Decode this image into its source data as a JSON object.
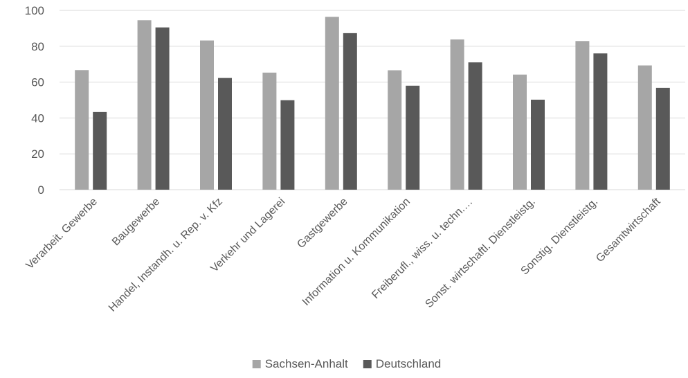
{
  "chart_data": {
    "type": "bar",
    "title": "",
    "xlabel": "",
    "ylabel": "",
    "ylim": [
      0,
      100
    ],
    "yticks": [
      0,
      20,
      40,
      60,
      80,
      100
    ],
    "grid": true,
    "legend_position": "bottom",
    "categories": [
      "Verarbeit. Gewerbe",
      "Baugewerbe",
      "Handel, Instandh. u. Rep. v. Kfz",
      "Verkehr und Lagerei",
      "Gastgewerbe",
      "Information u. Kommunikation",
      "Freiberufl., wiss. u. techn.…",
      "Sonst. wirtschaftl. Dienstleistg.",
      "Sonstig. Dienstleistg.",
      "Gesamtwirtschaft"
    ],
    "series": [
      {
        "name": "Sachsen-Anhalt",
        "color": "#a6a6a6",
        "values": [
          66.7,
          94.5,
          83.2,
          65.3,
          96.4,
          66.6,
          83.8,
          64.2,
          82.9,
          69.3
        ]
      },
      {
        "name": "Deutschland",
        "color": "#595959",
        "values": [
          43.3,
          90.5,
          62.3,
          49.9,
          87.3,
          58.0,
          71.0,
          50.2,
          76.0,
          56.8
        ]
      }
    ]
  }
}
